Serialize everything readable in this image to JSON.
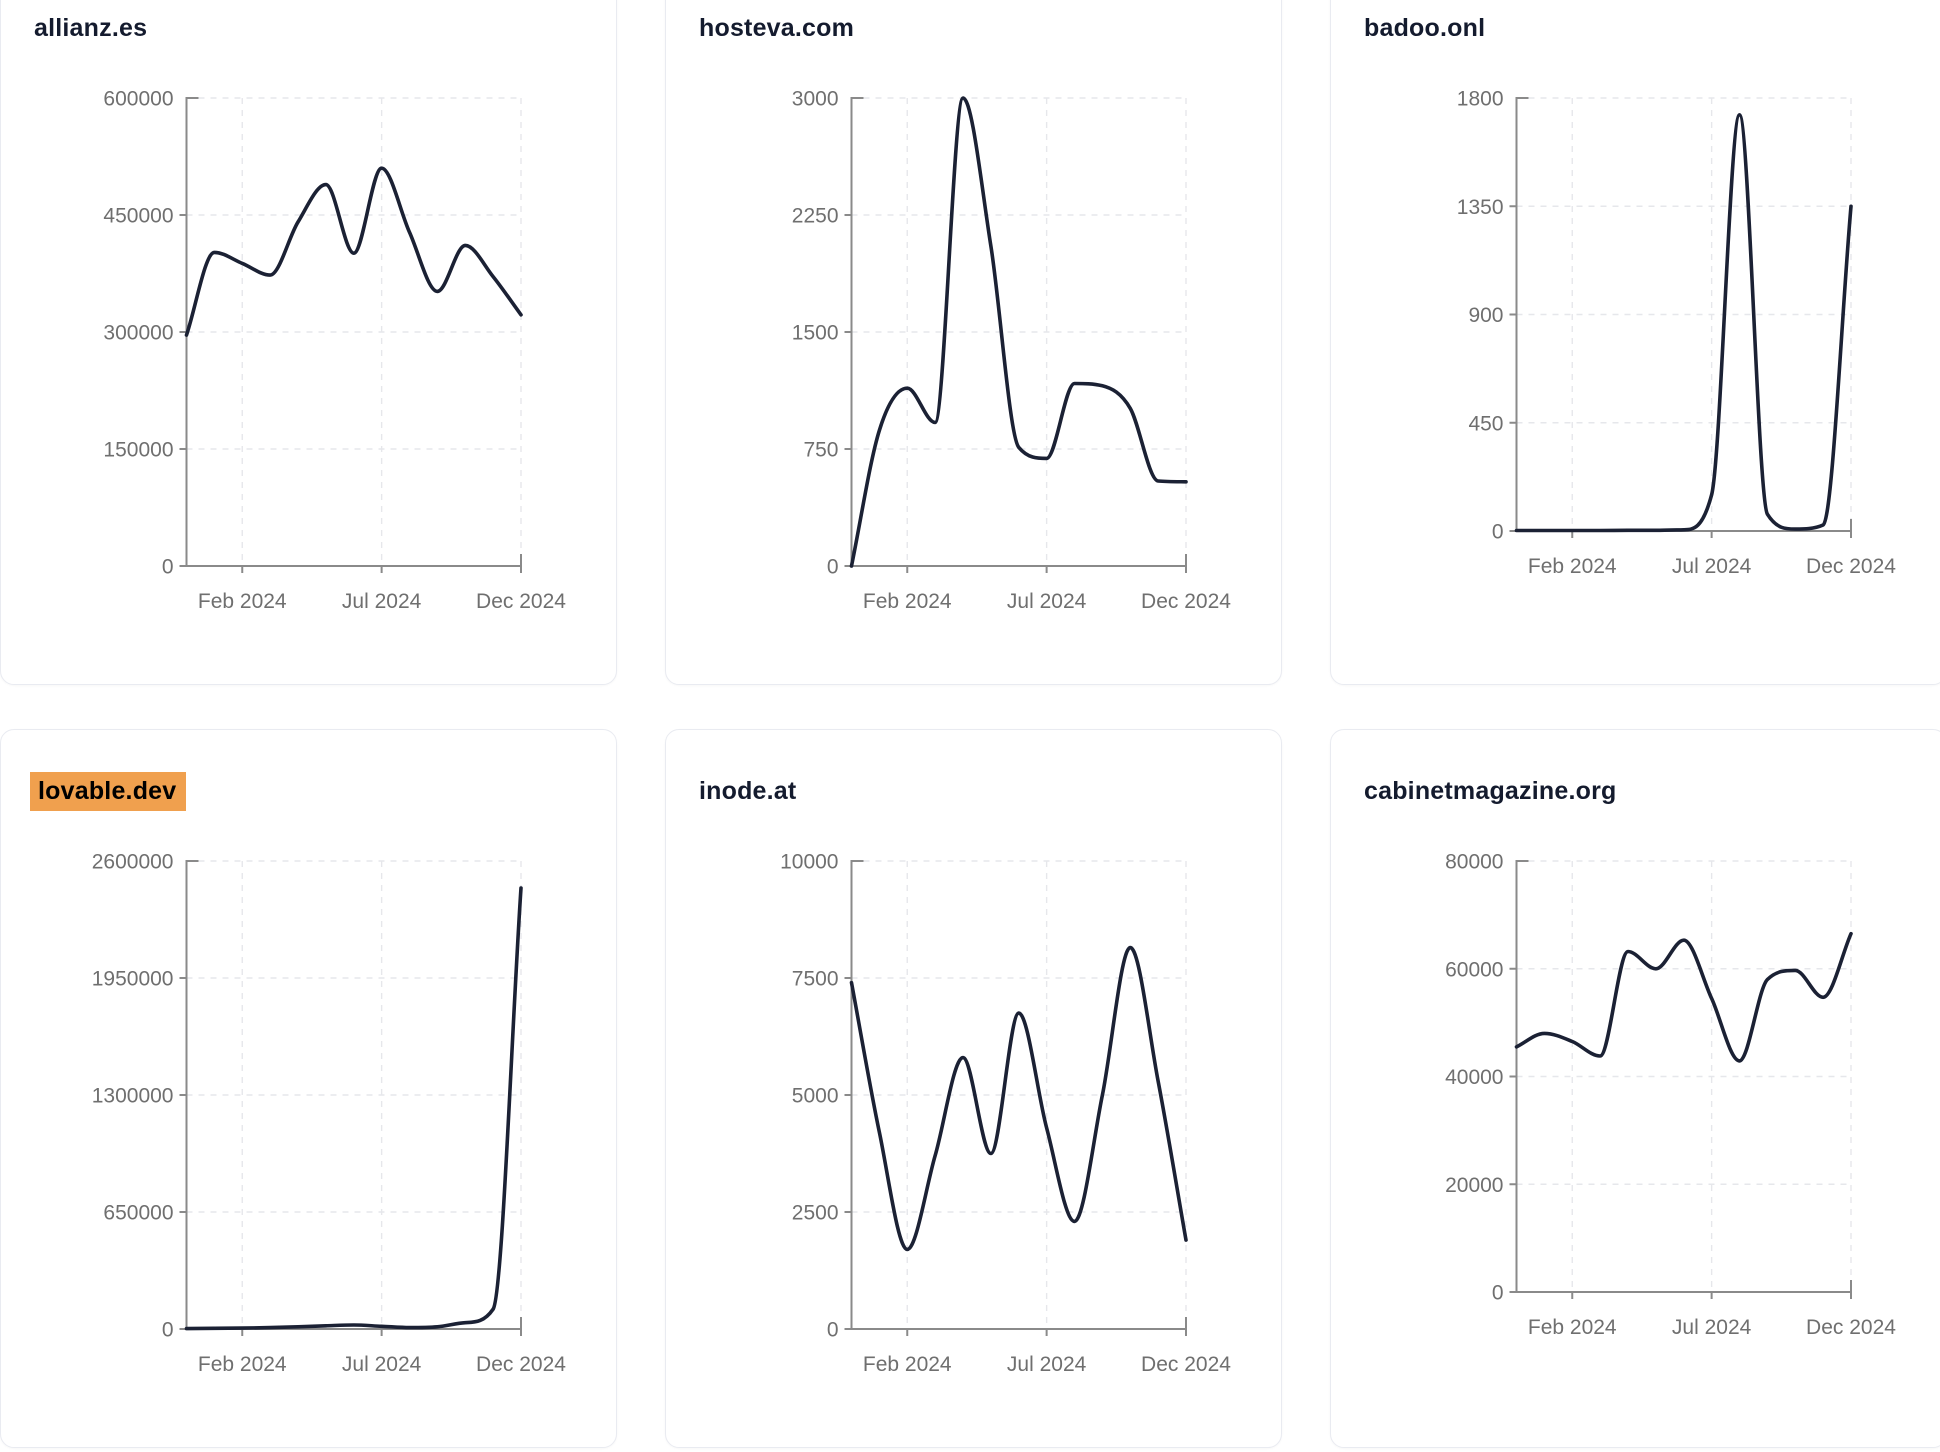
{
  "page": {
    "background": "#ffffff",
    "layout": "3x2-card-grid-of-domain-traffic-sparklines"
  },
  "colors": {
    "line": "#1b2134",
    "title": "#141b2e",
    "axis": "#8a8a8a",
    "tick_label": "#6f6f6f",
    "gridline": "#e6e7eb",
    "card_border": "#e9ebf1",
    "highlight_bg": "#f0a04e",
    "highlight_text": "#000000"
  },
  "chart_data": [
    {
      "type": "line",
      "title": "allianz.es",
      "title_highlighted": false,
      "x": [
        "Dec 2023",
        "Jan 2024",
        "Feb 2024",
        "Mar 2024",
        "Apr 2024",
        "May 2024",
        "Jun 2024",
        "Jul 2024",
        "Aug 2024",
        "Sep 2024",
        "Oct 2024",
        "Nov 2024",
        "Dec 2024"
      ],
      "x_shown_tick_indices": [
        2,
        7,
        12
      ],
      "x_shown_tick_labels": [
        "Feb 2024",
        "Jul 2024",
        "Dec 2024"
      ],
      "values": [
        296000,
        402000,
        388000,
        373000,
        441000,
        489000,
        401000,
        510000,
        428000,
        352000,
        411000,
        371000,
        322000
      ],
      "y_ticks": [
        0,
        150000,
        300000,
        450000,
        600000
      ],
      "ylim": [
        0,
        600000
      ],
      "grid": "dashed",
      "legend": "none"
    },
    {
      "type": "line",
      "title": "hosteva.com",
      "title_highlighted": false,
      "x": [
        "Dec 2023",
        "Jan 2024",
        "Feb 2024",
        "Mar 2024",
        "Apr 2024",
        "May 2024",
        "Jun 2024",
        "Jul 2024",
        "Aug 2024",
        "Sep 2024",
        "Oct 2024",
        "Nov 2024",
        "Dec 2024"
      ],
      "x_shown_tick_indices": [
        2,
        7,
        12
      ],
      "x_shown_tick_labels": [
        "Feb 2024",
        "Jul 2024",
        "Dec 2024"
      ],
      "values": [
        0,
        870,
        1140,
        920,
        3000,
        2050,
        760,
        690,
        1170,
        1155,
        1010,
        545,
        540
      ],
      "y_ticks": [
        0,
        750,
        1500,
        2250,
        3000
      ],
      "ylim": [
        0,
        3000
      ],
      "grid": "dashed",
      "legend": "none"
    },
    {
      "type": "line",
      "title": "badoo.onl",
      "title_highlighted": false,
      "x": [
        "Dec 2023",
        "Jan 2024",
        "Feb 2024",
        "Mar 2024",
        "Apr 2024",
        "May 2024",
        "Jun 2024",
        "Jul 2024",
        "Aug 2024",
        "Sep 2024",
        "Oct 2024",
        "Nov 2024",
        "Dec 2024"
      ],
      "x_shown_tick_indices": [
        2,
        7,
        12
      ],
      "x_shown_tick_labels": [
        "Feb 2024",
        "Jul 2024",
        "Dec 2024"
      ],
      "values": [
        2,
        2,
        2,
        2,
        3,
        3,
        5,
        150,
        1730,
        70,
        8,
        25,
        1350
      ],
      "y_ticks": [
        0,
        450,
        900,
        1350,
        1800
      ],
      "ylim": [
        0,
        1800
      ],
      "grid": "dashed",
      "legend": "none"
    },
    {
      "type": "line",
      "title": "lovable.dev",
      "title_highlighted": true,
      "x": [
        "Dec 2023",
        "Jan 2024",
        "Feb 2024",
        "Mar 2024",
        "Apr 2024",
        "May 2024",
        "Jun 2024",
        "Jul 2024",
        "Aug 2024",
        "Sep 2024",
        "Oct 2024",
        "Nov 2024",
        "Dec 2024"
      ],
      "x_shown_tick_indices": [
        2,
        7,
        12
      ],
      "x_shown_tick_labels": [
        "Feb 2024",
        "Jul 2024",
        "Dec 2024"
      ],
      "values": [
        2000,
        4000,
        5000,
        8000,
        12000,
        18000,
        22000,
        15000,
        8000,
        12000,
        35000,
        110000,
        2450000
      ],
      "y_ticks": [
        0,
        650000,
        1300000,
        1950000,
        2600000
      ],
      "ylim": [
        0,
        2600000
      ],
      "grid": "dashed",
      "legend": "none"
    },
    {
      "type": "line",
      "title": "inode.at",
      "title_highlighted": false,
      "x": [
        "Dec 2023",
        "Jan 2024",
        "Feb 2024",
        "Mar 2024",
        "Apr 2024",
        "May 2024",
        "Jun 2024",
        "Jul 2024",
        "Aug 2024",
        "Sep 2024",
        "Oct 2024",
        "Nov 2024",
        "Dec 2024"
      ],
      "x_shown_tick_indices": [
        2,
        7,
        12
      ],
      "x_shown_tick_labels": [
        "Feb 2024",
        "Jul 2024",
        "Dec 2024"
      ],
      "values": [
        7400,
        4200,
        1700,
        3700,
        5800,
        3750,
        6750,
        4300,
        2300,
        5000,
        8150,
        5300,
        1900
      ],
      "y_ticks": [
        0,
        2500,
        5000,
        7500,
        10000
      ],
      "ylim": [
        0,
        10000
      ],
      "grid": "dashed",
      "legend": "none"
    },
    {
      "type": "line",
      "title": "cabinetmagazine.org",
      "title_highlighted": false,
      "x": [
        "Dec 2023",
        "Jan 2024",
        "Feb 2024",
        "Mar 2024",
        "Apr 2024",
        "May 2024",
        "Jun 2024",
        "Jul 2024",
        "Aug 2024",
        "Sep 2024",
        "Oct 2024",
        "Nov 2024",
        "Dec 2024"
      ],
      "x_shown_tick_indices": [
        2,
        7,
        12
      ],
      "x_shown_tick_labels": [
        "Feb 2024",
        "Jul 2024",
        "Dec 2024"
      ],
      "values": [
        45500,
        48000,
        46500,
        43800,
        63200,
        60000,
        65300,
        54500,
        42900,
        58000,
        59700,
        54700,
        66500
      ],
      "y_ticks": [
        0,
        20000,
        40000,
        60000,
        80000
      ],
      "ylim": [
        0,
        80000
      ],
      "grid": "dashed",
      "legend": "none"
    }
  ]
}
